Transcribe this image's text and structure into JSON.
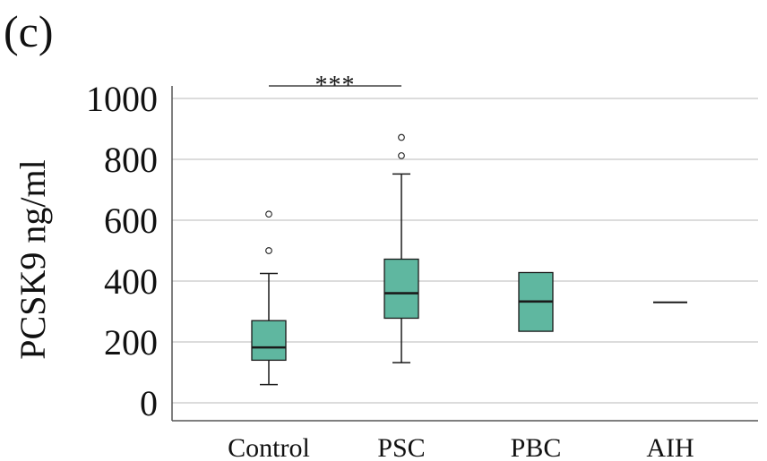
{
  "chart_data": {
    "type": "box",
    "panel_label": "(c)",
    "title": "",
    "xlabel": "",
    "ylabel": "PCSK9 ng/ml",
    "ylim": [
      0,
      1000
    ],
    "yticks": [
      0,
      200,
      400,
      600,
      800,
      1000
    ],
    "categories": [
      "Control",
      "PSC",
      "PBC",
      "AIH"
    ],
    "grid": true,
    "box_color": "#5fb7a0",
    "line_color": "#1a1a1a",
    "grid_color": "#c8c8c8",
    "boxes": [
      {
        "category": "Control",
        "whisker_low": 60,
        "q1": 140,
        "median": 182,
        "q3": 270,
        "whisker_high": 425,
        "outliers": [
          500,
          620
        ]
      },
      {
        "category": "PSC",
        "whisker_low": 132,
        "q1": 278,
        "median": 360,
        "q3": 472,
        "whisker_high": 752,
        "outliers": [
          812,
          872
        ]
      },
      {
        "category": "PBC",
        "whisker_low": null,
        "q1": 235,
        "median": 333,
        "q3": 428,
        "whisker_high": null,
        "outliers": []
      },
      {
        "category": "AIH",
        "whisker_low": null,
        "q1": 330,
        "median": 330,
        "q3": 330,
        "whisker_high": null,
        "outliers": []
      }
    ],
    "annotations": [
      {
        "text": "***",
        "from": "Control",
        "to": "PSC",
        "level": 1000
      }
    ]
  }
}
